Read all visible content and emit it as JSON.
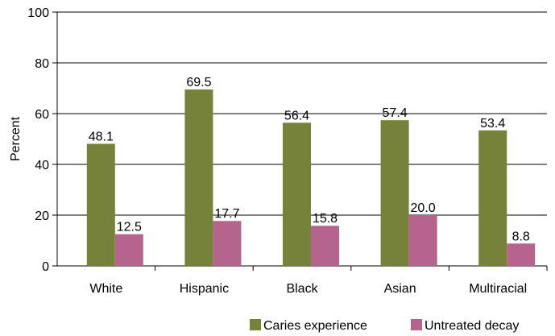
{
  "chart_data": {
    "type": "bar",
    "categories": [
      "White",
      "Hispanic",
      "Black",
      "Asian",
      "Multiracial"
    ],
    "series": [
      {
        "name": "Caries experience",
        "values": [
          48.1,
          69.5,
          56.4,
          57.4,
          53.4
        ],
        "labels": [
          "48.1",
          "69.5",
          "56.4",
          "57.4",
          "53.4"
        ],
        "color": "#76823a"
      },
      {
        "name": "Untreated decay",
        "values": [
          12.5,
          17.7,
          15.8,
          20.0,
          8.8
        ],
        "labels": [
          "12.5",
          "17.7",
          "15.8",
          "20.0",
          "8.8"
        ],
        "color": "#b5648d"
      }
    ],
    "title": "",
    "xlabel": "",
    "ylabel": "Percent",
    "ylim": [
      0,
      100
    ],
    "yticks": [
      "0",
      "20",
      "40",
      "60",
      "80",
      "100"
    ],
    "grid": true,
    "legend_position": "bottom-right"
  }
}
